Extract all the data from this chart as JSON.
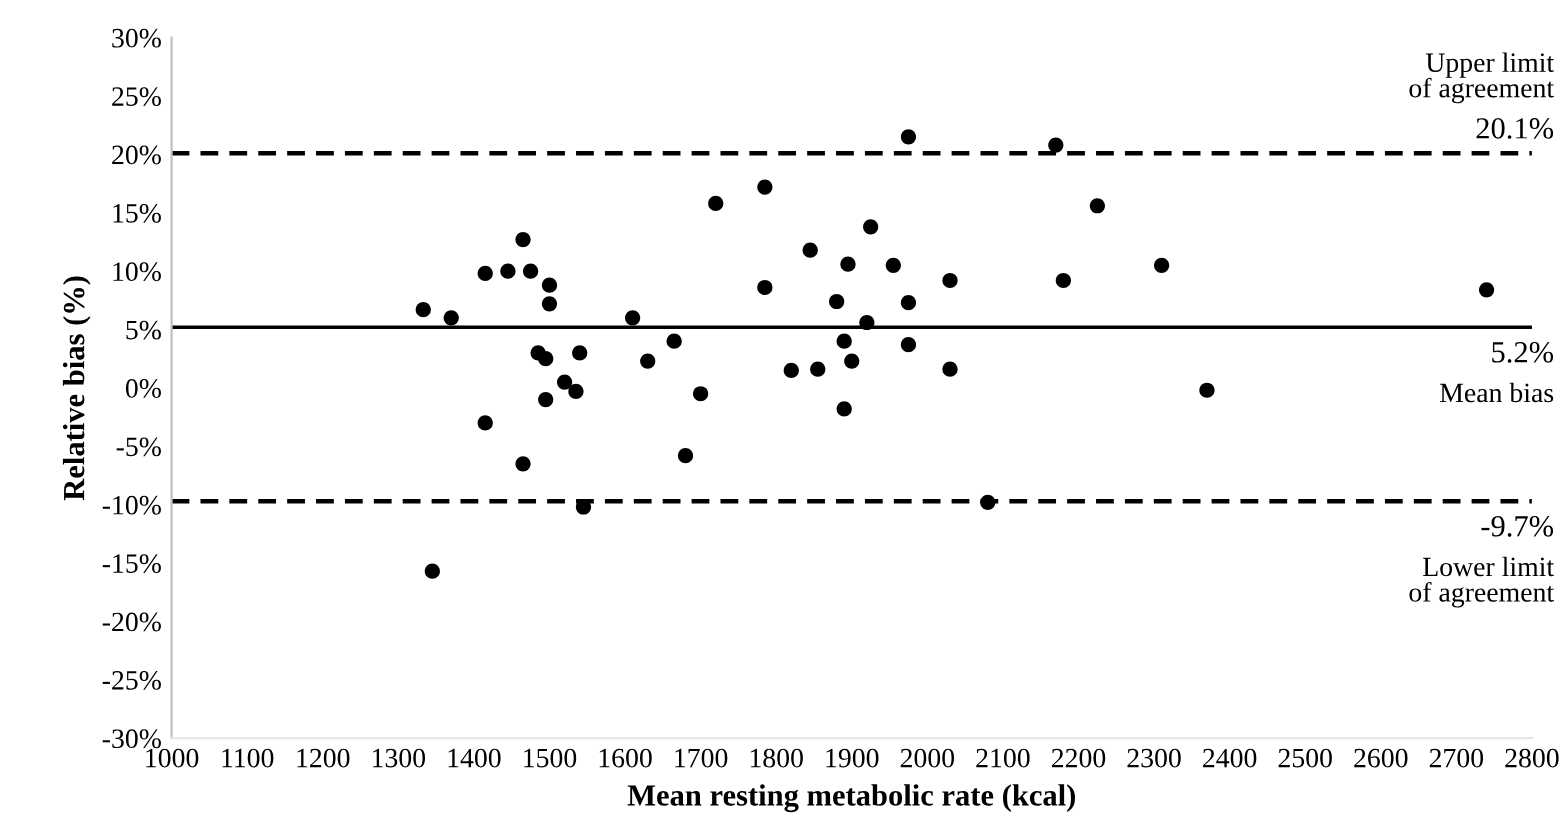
{
  "chart_data": {
    "type": "scatter",
    "xlabel": "Mean resting metabolic rate (kcal)",
    "ylabel": "Relative bias (%)",
    "x": [
      1333,
      1345,
      1370,
      1415,
      1415,
      1445,
      1465,
      1465,
      1475,
      1485,
      1495,
      1495,
      1500,
      1500,
      1520,
      1535,
      1540,
      1545,
      1610,
      1630,
      1665,
      1680,
      1700,
      1720,
      1785,
      1785,
      1820,
      1845,
      1855,
      1880,
      1890,
      1890,
      1895,
      1900,
      1920,
      1925,
      1955,
      1975,
      1975,
      1975,
      2030,
      2030,
      2080,
      2170,
      2180,
      2225,
      2310,
      2370,
      2740
    ],
    "series": [
      {
        "color": "#000000",
        "values": [
          6.7,
          -15.7,
          6,
          9.8,
          -3,
          10,
          12.7,
          -6.5,
          10,
          3,
          2.5,
          -1,
          8.8,
          7.2,
          0.5,
          -0.3,
          3,
          -10.2,
          6,
          2.3,
          4,
          -5.8,
          -0.5,
          15.8,
          17.2,
          8.6,
          1.5,
          11.8,
          1.6,
          7.4,
          4,
          -1.8,
          10.6,
          2.3,
          5.6,
          13.8,
          10.5,
          21.5,
          7.3,
          3.7,
          9.2,
          1.6,
          -9.8,
          20.8,
          9.2,
          15.6,
          10.5,
          -0.2,
          8.4
        ]
      }
    ],
    "marker": "circle",
    "xlim": [
      1000,
      2800
    ],
    "xticks": [
      1000,
      1100,
      1200,
      1300,
      1400,
      1500,
      1600,
      1700,
      1800,
      1900,
      2000,
      2100,
      2200,
      2300,
      2400,
      2500,
      2600,
      2700,
      2800
    ],
    "ylim": [
      -30,
      30
    ],
    "yticks": [
      {
        "value": -30,
        "label": "-30%"
      },
      {
        "value": -25,
        "label": "-25%"
      },
      {
        "value": -20,
        "label": "-20%"
      },
      {
        "value": -15,
        "label": "-15%"
      },
      {
        "value": -10,
        "label": "-10%"
      },
      {
        "value": -5,
        "label": "-5%"
      },
      {
        "value": 0,
        "label": "0%"
      },
      {
        "value": 5,
        "label": "5%"
      },
      {
        "value": 10,
        "label": "10%"
      },
      {
        "value": 15,
        "label": "15%"
      },
      {
        "value": 20,
        "label": "20%"
      },
      {
        "value": 25,
        "label": "25%"
      },
      {
        "value": 30,
        "label": "30%"
      }
    ],
    "grid": false,
    "legend": false,
    "ref_lines": [
      {
        "axis": "y",
        "value": 20.1,
        "label": "20.1%",
        "line_style": "dashed",
        "color": "#000000"
      },
      {
        "axis": "y",
        "value": 5.2,
        "label": "5.2%",
        "line_style": "solid",
        "color": "#000000"
      },
      {
        "axis": "y",
        "value": -9.7,
        "label": "-9.7%",
        "line_style": "dashed",
        "color": "#000000"
      }
    ],
    "annotations": [
      {
        "text": "Upper limit\nof agreement",
        "y": 20.1
      },
      {
        "text": "Mean bias",
        "y": 5.2
      },
      {
        "text": "Lower limit\nof agreement",
        "y": -9.7
      }
    ]
  }
}
